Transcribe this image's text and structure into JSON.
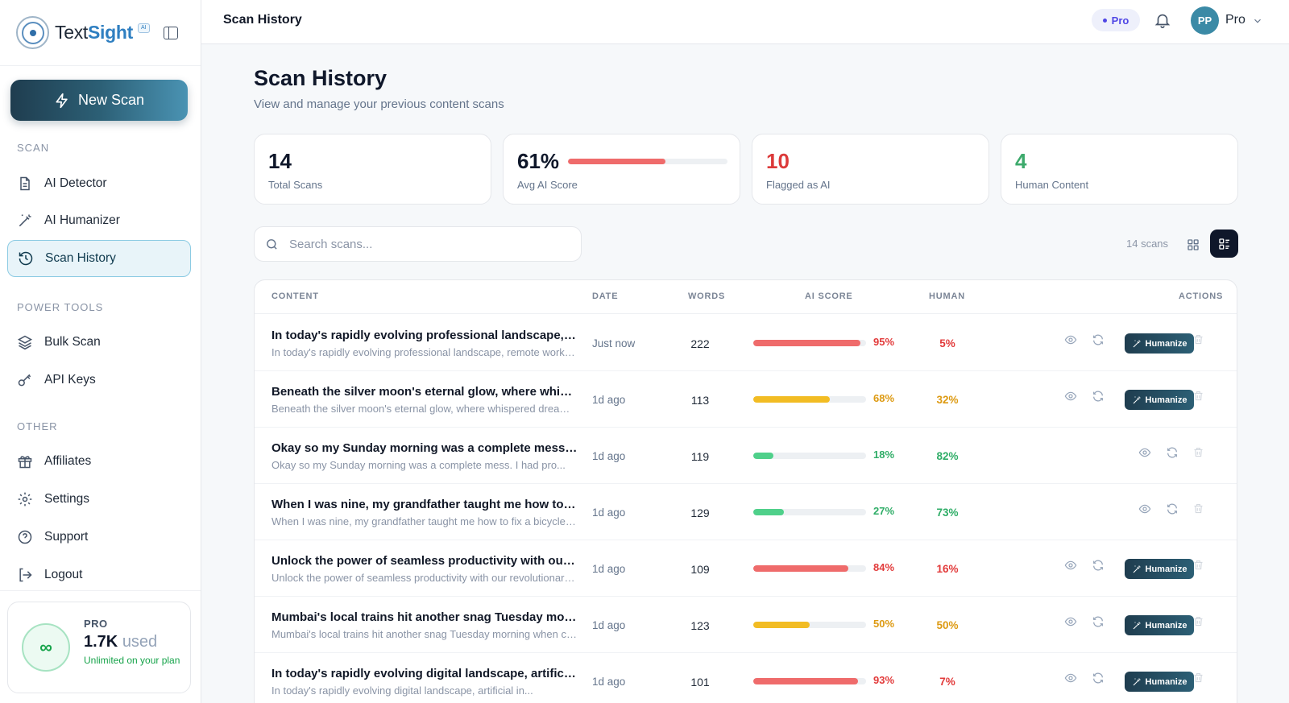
{
  "brand": {
    "name_part1": "Text",
    "name_part2": "Sight",
    "tag": "AI"
  },
  "sidebar": {
    "new_scan": "New Scan",
    "sections": {
      "scan": "SCAN",
      "power": "POWER TOOLS",
      "other": "OTHER"
    },
    "items": [
      {
        "label": "AI Detector",
        "icon": "document-icon"
      },
      {
        "label": "AI Humanizer",
        "icon": "magic-wand-icon"
      },
      {
        "label": "Scan History",
        "icon": "history-icon",
        "active": true
      },
      {
        "label": "Bulk Scan",
        "icon": "layers-icon"
      },
      {
        "label": "API Keys",
        "icon": "key-icon"
      },
      {
        "label": "Affiliates",
        "icon": "gift-icon"
      },
      {
        "label": "Settings",
        "icon": "gear-icon"
      },
      {
        "label": "Support",
        "icon": "help-icon"
      },
      {
        "label": "Logout",
        "icon": "logout-icon"
      }
    ],
    "plan": {
      "label": "PRO",
      "used_value": "1.7K",
      "used_word": "used",
      "note": "Unlimited on your plan",
      "symbol": "∞"
    }
  },
  "topbar": {
    "title": "Scan History",
    "plan_badge": "Pro",
    "avatar": "PP",
    "user": "Pro"
  },
  "main": {
    "title": "Scan History",
    "subtitle": "View and manage your previous content scans",
    "stats": [
      {
        "value": "14",
        "label": "Total Scans",
        "color": "#0f172a"
      },
      {
        "value": "61%",
        "label": "Avg AI Score",
        "color": "#0f172a",
        "bar_fraction": 0.61
      },
      {
        "value": "10",
        "label": "Flagged as AI",
        "color": "#dc3a3a"
      },
      {
        "value": "4",
        "label": "Human Content",
        "color": "#3daa6c"
      }
    ],
    "search": {
      "placeholder": "Search scans..."
    },
    "scan_count": "14 scans",
    "table": {
      "headers": {
        "content": "CONTENT",
        "date": "DATE",
        "words": "WORDS",
        "ai_score": "AI SCORE",
        "human": "HUMAN",
        "actions": "ACTIONS"
      },
      "humanize_label": "Humanize",
      "rows": [
        {
          "title": "In today's rapidly evolving professional landscape, remote work has",
          "snippet": "In today's rapidly evolving professional landscape, remote work has become",
          "date": "Just now",
          "words": "222",
          "ai": 95,
          "ai_text": "95%",
          "human_text": "5%",
          "level": "high"
        },
        {
          "title": "Beneath the silver moon's eternal glow, where whispered dreams",
          "snippet": "Beneath the silver moon's eternal glow, where whispered dreams take flight",
          "date": "1d ago",
          "words": "113",
          "ai": 68,
          "ai_text": "68%",
          "human_text": "32%",
          "level": "mid"
        },
        {
          "title": "Okay so my Sunday morning was a complete mess. I had",
          "snippet": "Okay so my Sunday morning was a complete mess. I had pro...",
          "date": "1d ago",
          "words": "119",
          "ai": 18,
          "ai_text": "18%",
          "human_text": "82%",
          "level": "low"
        },
        {
          "title": "When I was nine, my grandfather taught me how to fix a bicycle",
          "snippet": "When I was nine, my grandfather taught me how to fix a bicycle chain",
          "date": "1d ago",
          "words": "129",
          "ai": 27,
          "ai_text": "27%",
          "human_text": "73%",
          "level": "low"
        },
        {
          "title": "Unlock the power of seamless productivity with our revolutionary",
          "snippet": "Unlock the power of seamless productivity with our revolutionary platform",
          "date": "1d ago",
          "words": "109",
          "ai": 84,
          "ai_text": "84%",
          "human_text": "16%",
          "level": "high"
        },
        {
          "title": "Mumbai's local trains hit another snag Tuesday morning when",
          "snippet": "Mumbai's local trains hit another snag Tuesday morning when commuters",
          "date": "1d ago",
          "words": "123",
          "ai": 50,
          "ai_text": "50%",
          "human_text": "50%",
          "level": "mid"
        },
        {
          "title": "In today's rapidly evolving digital landscape, artificial intelligence",
          "snippet": "In today's rapidly evolving digital landscape, artificial in...",
          "date": "1d ago",
          "words": "101",
          "ai": 93,
          "ai_text": "93%",
          "human_text": "7%",
          "level": "high"
        }
      ]
    }
  },
  "colors": {
    "high_bar": "#ef6b6b",
    "high_text": "#e23b3b",
    "mid_bar": "#f2bc23",
    "mid_text": "#dd9a12",
    "low_bar": "#4fd08a",
    "low_text": "#2fad67"
  }
}
